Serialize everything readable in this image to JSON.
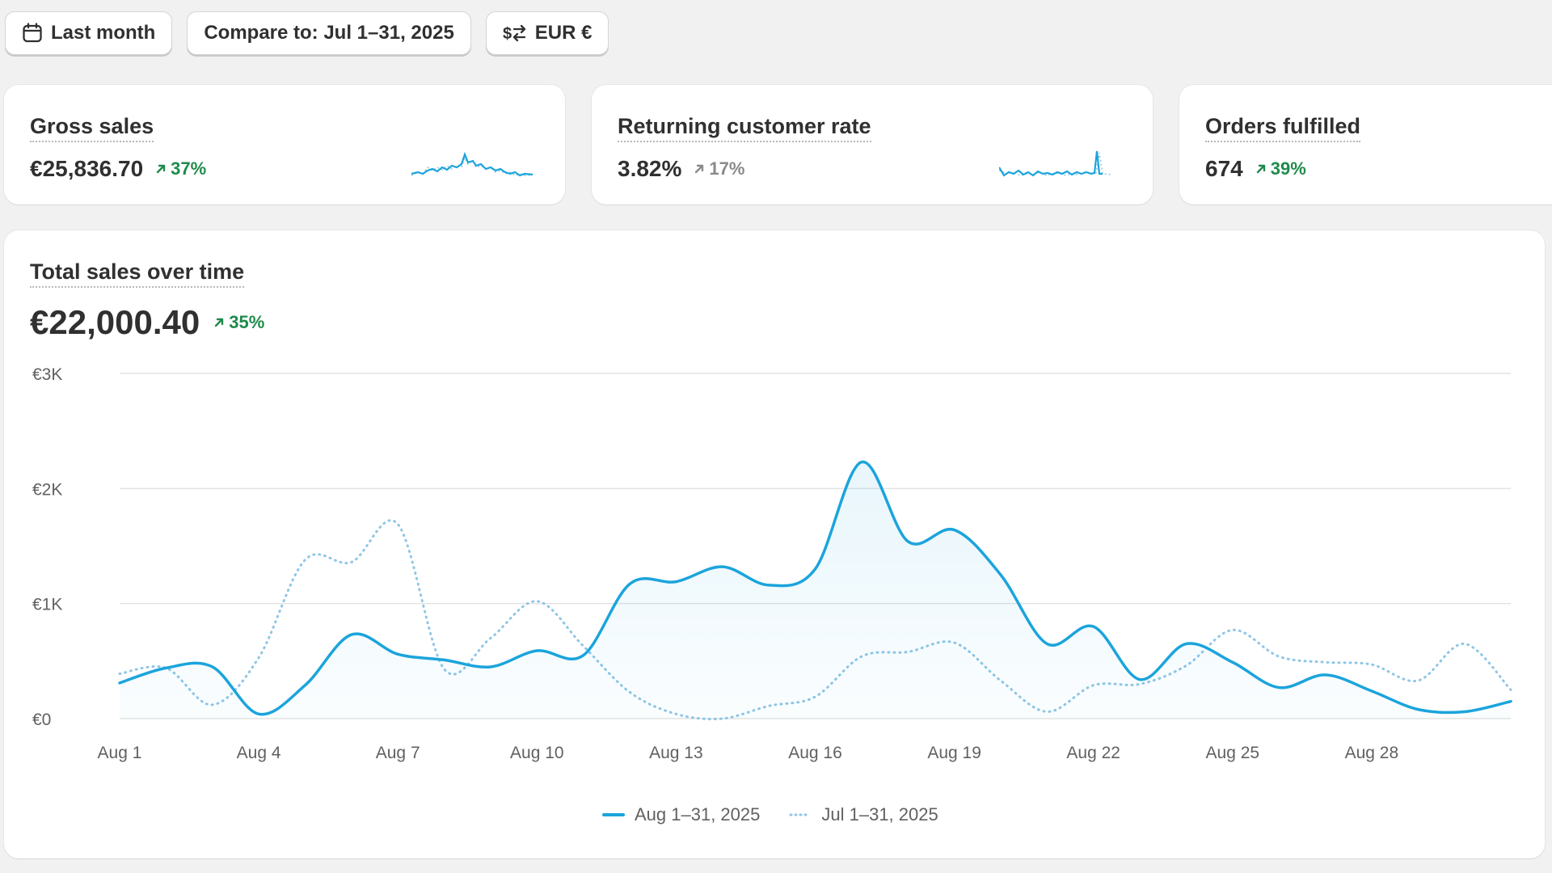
{
  "toolbar": {
    "date_label": "Last month",
    "compare_label": "Compare to: Jul 1–31, 2025",
    "currency_label": "EUR €"
  },
  "metrics": [
    {
      "title": "Gross sales",
      "value": "€25,836.70",
      "delta": "37%",
      "delta_color": "#1f8a4c"
    },
    {
      "title": "Returning customer rate",
      "value": "3.82%",
      "delta": "17%",
      "delta_color": "#8a8a8a"
    },
    {
      "title": "Orders fulfilled",
      "value": "674",
      "delta": "39%",
      "delta_color": "#1f8a4c"
    }
  ],
  "sales": {
    "title": "Total sales over time",
    "value": "€22,000.40",
    "delta": "35%"
  },
  "colors": {
    "primary": "#1ba4dc",
    "comparison": "#8fc6e6",
    "positive": "#1f8a4c"
  },
  "chart_data": {
    "type": "line",
    "categories": [
      "Aug 1",
      "Aug 2",
      "Aug 3",
      "Aug 4",
      "Aug 5",
      "Aug 6",
      "Aug 7",
      "Aug 8",
      "Aug 9",
      "Aug 10",
      "Aug 11",
      "Aug 12",
      "Aug 13",
      "Aug 14",
      "Aug 15",
      "Aug 16",
      "Aug 17",
      "Aug 18",
      "Aug 19",
      "Aug 20",
      "Aug 21",
      "Aug 22",
      "Aug 23",
      "Aug 24",
      "Aug 25",
      "Aug 26",
      "Aug 27",
      "Aug 28",
      "Aug 29",
      "Aug 30",
      "Aug 31"
    ],
    "x_tick_labels": [
      "Aug 1",
      "Aug 4",
      "Aug 7",
      "Aug 10",
      "Aug 13",
      "Aug 16",
      "Aug 19",
      "Aug 22",
      "Aug 25",
      "Aug 28"
    ],
    "y_tick_labels": [
      "€0",
      "€1K",
      "€2K",
      "€3K"
    ],
    "y_ticks": [
      0,
      1000,
      2000,
      3000
    ],
    "ylim": [
      0,
      3000
    ],
    "series": [
      {
        "name": "Aug 1–31, 2025",
        "style": "solid",
        "color": "#1ba4dc",
        "values": [
          310,
          440,
          450,
          40,
          290,
          730,
          560,
          510,
          450,
          590,
          550,
          1170,
          1190,
          1320,
          1160,
          1300,
          2230,
          1540,
          1640,
          1250,
          650,
          800,
          340,
          650,
          490,
          270,
          380,
          240,
          80,
          60,
          150
        ]
      },
      {
        "name": "Jul 1–31, 2025",
        "style": "dotted",
        "color": "#8fc6e6",
        "values": [
          390,
          440,
          120,
          530,
          1380,
          1360,
          1690,
          430,
          700,
          1020,
          630,
          230,
          40,
          0,
          110,
          190,
          540,
          580,
          660,
          330,
          60,
          290,
          300,
          460,
          770,
          540,
          490,
          470,
          330,
          650,
          250
        ]
      }
    ],
    "grid": true,
    "legend": "bottom-center"
  }
}
